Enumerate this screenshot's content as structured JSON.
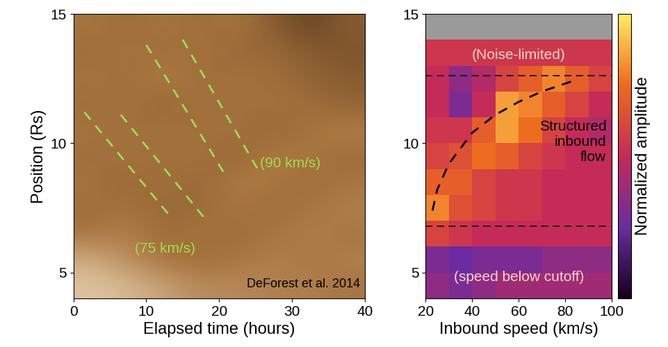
{
  "chart_data": [
    {
      "type": "heatmap",
      "xlabel": "Elapsed time (hours)",
      "ylabel": "Position (Rs)",
      "xlim": [
        0,
        40
      ],
      "ylim": [
        4,
        15
      ],
      "xticks": [
        0,
        10,
        20,
        30,
        40
      ],
      "yticks": [
        5,
        10,
        15
      ],
      "x_edges": [
        0,
        5,
        10,
        15,
        20,
        25,
        30,
        35,
        40
      ],
      "y_edges": [
        4,
        5,
        6,
        7,
        8,
        9,
        10,
        11,
        12,
        13,
        14,
        15
      ],
      "value_range": [
        0,
        1
      ],
      "cells": [
        [
          0.85,
          0.8,
          0.7,
          0.6,
          0.6,
          0.55,
          0.55,
          0.5
        ],
        [
          0.75,
          0.6,
          0.5,
          0.45,
          0.5,
          0.55,
          0.5,
          0.55
        ],
        [
          0.5,
          0.55,
          0.45,
          0.5,
          0.45,
          0.5,
          0.55,
          0.5
        ],
        [
          0.45,
          0.5,
          0.4,
          0.45,
          0.5,
          0.45,
          0.5,
          0.55
        ],
        [
          0.5,
          0.4,
          0.5,
          0.4,
          0.55,
          0.5,
          0.45,
          0.5
        ],
        [
          0.45,
          0.5,
          0.45,
          0.5,
          0.4,
          0.55,
          0.5,
          0.45
        ],
        [
          0.5,
          0.45,
          0.5,
          0.45,
          0.5,
          0.4,
          0.5,
          0.55
        ],
        [
          0.45,
          0.5,
          0.4,
          0.5,
          0.45,
          0.5,
          0.45,
          0.4
        ],
        [
          0.5,
          0.45,
          0.55,
          0.45,
          0.5,
          0.45,
          0.4,
          0.35
        ],
        [
          0.45,
          0.5,
          0.45,
          0.5,
          0.4,
          0.45,
          0.35,
          0.3
        ],
        [
          0.5,
          0.45,
          0.5,
          0.45,
          0.5,
          0.35,
          0.2,
          0.35
        ]
      ],
      "series": [
        {
          "x": [
            1.5,
            13.5
          ],
          "y": [
            11.2,
            7.1
          ],
          "color": "#9be04c",
          "line_style": "dashed"
        },
        {
          "x": [
            6.5,
            18
          ],
          "y": [
            11.1,
            7.1
          ],
          "color": "#9be04c",
          "line_style": "dashed"
        },
        {
          "x": [
            10,
            21
          ],
          "y": [
            13.8,
            8.7
          ],
          "color": "#9be04c",
          "line_style": "dashed"
        },
        {
          "x": [
            15,
            25.5
          ],
          "y": [
            14,
            8.9
          ],
          "color": "#9be04c",
          "line_style": "dashed"
        }
      ],
      "annotations": [
        "(75 km/s)",
        "(90 km/s)",
        "DeForest et al. 2014"
      ]
    },
    {
      "type": "heatmap",
      "xlabel": "Inbound speed (km/s)",
      "xlim": [
        20,
        100
      ],
      "ylim": [
        4,
        15
      ],
      "xticks": [
        20,
        40,
        60,
        80,
        100
      ],
      "yticks": [
        5,
        10,
        15
      ],
      "x_edges": [
        20,
        30,
        40,
        50,
        60,
        70,
        80,
        90,
        100
      ],
      "y_edges": [
        4,
        5,
        6,
        7,
        8,
        9,
        10,
        11,
        12,
        13,
        14,
        15
      ],
      "colorbar_label": "Normalized amplitude",
      "colorbar_range": [
        0,
        1
      ],
      "colorbar_ticks": [],
      "cells": [
        [
          0.35,
          0.3,
          0.35,
          0.4,
          0.4,
          0.4,
          0.4,
          0.4
        ],
        [
          0.3,
          0.25,
          0.3,
          0.3,
          0.3,
          0.35,
          0.35,
          0.35
        ],
        [
          0.6,
          0.55,
          0.5,
          0.5,
          0.5,
          0.5,
          0.5,
          0.5
        ],
        [
          0.8,
          0.65,
          0.6,
          0.55,
          0.55,
          0.5,
          0.5,
          0.5
        ],
        [
          0.7,
          0.7,
          0.6,
          0.55,
          0.55,
          0.5,
          0.5,
          0.5
        ],
        [
          0.6,
          0.65,
          0.75,
          0.7,
          0.6,
          0.55,
          0.5,
          0.5
        ],
        [
          0.55,
          0.55,
          0.7,
          0.85,
          0.75,
          0.6,
          0.5,
          0.45
        ],
        [
          0.5,
          0.3,
          0.5,
          0.85,
          0.8,
          0.7,
          0.6,
          0.5
        ],
        [
          0.5,
          0.35,
          0.45,
          0.6,
          0.7,
          0.8,
          0.7,
          0.6
        ],
        [
          0.55,
          0.55,
          0.55,
          0.55,
          0.55,
          0.55,
          0.55,
          0.55
        ],
        [
          null,
          null,
          null,
          null,
          null,
          null,
          null,
          null
        ]
      ],
      "boundaries": [
        6.8,
        12.6
      ],
      "series": [
        {
          "x": [
            23,
            25,
            30,
            40,
            50,
            60,
            70,
            83
          ],
          "y": [
            7.4,
            8.2,
            9.2,
            10.4,
            11.1,
            11.6,
            12.0,
            12.4
          ],
          "color": "#000000",
          "line_style": "dashed"
        }
      ],
      "annotations": [
        "(Noise-limited)",
        "Structured\ninbound\nflow",
        "(speed below cutoff)"
      ]
    }
  ]
}
